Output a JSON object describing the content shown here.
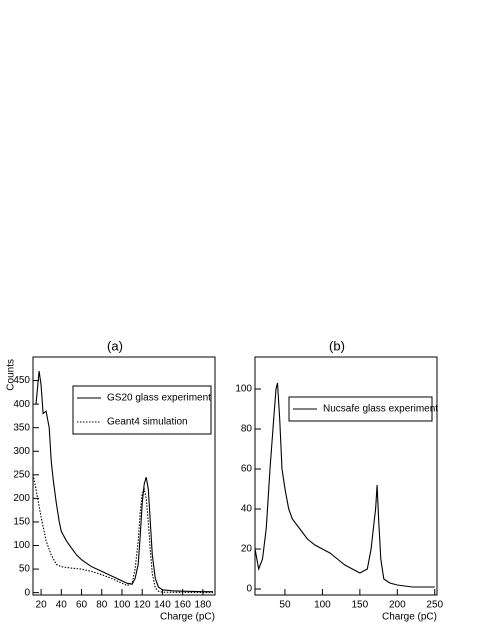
{
  "chart_data": [
    {
      "type": "line",
      "title": "(a)",
      "y_label": "Counts",
      "x_label": "Charge (pC)",
      "xlim": [
        12,
        192
      ],
      "xticks": [
        20,
        40,
        60,
        80,
        100,
        120,
        140,
        160,
        180
      ],
      "ylim": [
        -5,
        500
      ],
      "yticks": [
        0,
        50,
        100,
        150,
        200,
        250,
        300,
        350,
        400,
        450
      ],
      "legend": "upper right",
      "series": [
        {
          "name": "GS20 glass experiment",
          "color": "#000000",
          "line_style": "solid",
          "x": [
            15,
            18,
            20,
            22,
            25,
            28,
            30,
            32,
            35,
            38,
            40,
            45,
            50,
            55,
            60,
            70,
            80,
            90,
            100,
            105,
            110,
            113,
            116,
            118,
            120,
            122,
            124,
            126,
            128,
            130,
            133,
            136,
            140,
            150,
            160,
            180,
            190
          ],
          "values": [
            400,
            470,
            440,
            380,
            385,
            350,
            280,
            240,
            190,
            150,
            130,
            110,
            95,
            80,
            70,
            55,
            45,
            35,
            25,
            20,
            18,
            30,
            60,
            120,
            190,
            230,
            245,
            220,
            150,
            80,
            30,
            12,
            6,
            4,
            3,
            2,
            2
          ]
        },
        {
          "name": "Geant4 simulation",
          "color": "#000000",
          "line_style": "dotted",
          "x": [
            12,
            15,
            20,
            25,
            30,
            35,
            40,
            50,
            60,
            70,
            80,
            90,
            100,
            105,
            110,
            113,
            116,
            118,
            120,
            122,
            124,
            126,
            128,
            130,
            133,
            136,
            140,
            190
          ],
          "values": [
            250,
            220,
            160,
            110,
            80,
            60,
            55,
            52,
            50,
            45,
            38,
            30,
            20,
            15,
            20,
            50,
            110,
            170,
            210,
            220,
            200,
            150,
            90,
            40,
            10,
            3,
            1,
            0
          ]
        }
      ]
    },
    {
      "type": "line",
      "title": "(b)",
      "x_label": "Charge (pC)",
      "xlim": [
        10,
        253
      ],
      "xticks": [
        50,
        100,
        150,
        200,
        250
      ],
      "ylim": [
        -3,
        116
      ],
      "yticks": [
        0,
        20,
        40,
        60,
        80,
        100
      ],
      "legend": "upper right",
      "series": [
        {
          "name": "Nucsafe glass experiment",
          "color": "#000000",
          "line_style": "solid",
          "x": [
            10,
            15,
            20,
            25,
            30,
            35,
            38,
            40,
            43,
            46,
            50,
            55,
            60,
            70,
            80,
            90,
            100,
            110,
            120,
            130,
            140,
            150,
            160,
            165,
            168,
            171,
            173,
            175,
            178,
            182,
            190,
            200,
            220,
            250
          ],
          "values": [
            20,
            10,
            15,
            30,
            60,
            85,
            100,
            103,
            85,
            60,
            50,
            40,
            35,
            30,
            25,
            22,
            20,
            18,
            15,
            12,
            10,
            8,
            10,
            20,
            30,
            40,
            52,
            35,
            15,
            5,
            3,
            2,
            1,
            1
          ]
        }
      ]
    }
  ]
}
